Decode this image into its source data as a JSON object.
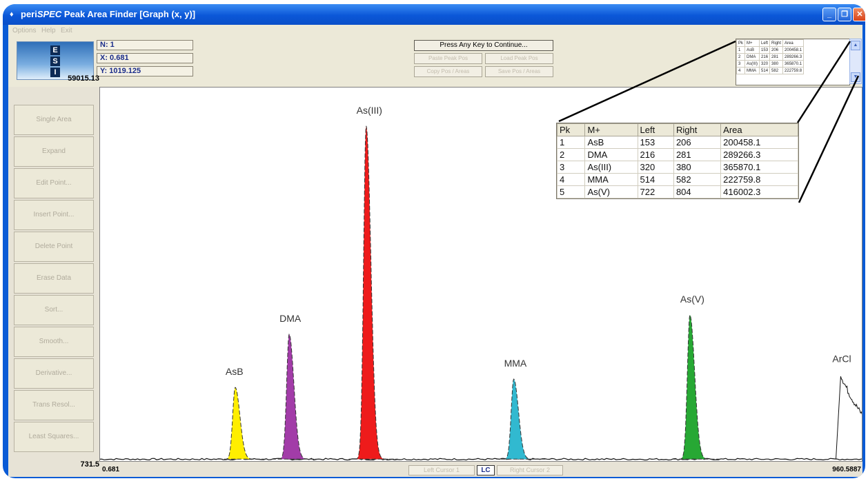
{
  "window": {
    "title_prefix": "peri",
    "title_brand": "SPEC",
    "title_rest": " Peak Area Finder [Graph (x, y)]",
    "controls": {
      "minimize": "_",
      "restore": "❐",
      "close": "✕"
    }
  },
  "menu": [
    "Options",
    "Help",
    "Exit"
  ],
  "logo": {
    "letters": [
      "E",
      "S",
      "I"
    ]
  },
  "readouts": {
    "n": "N: 1",
    "x": "X: 0.681",
    "y": "Y: 1019.125"
  },
  "y_axis": {
    "max_label": "59015.13",
    "min_label": "731.5"
  },
  "x_axis": {
    "min_label": "0.681",
    "max_label": "960.5887"
  },
  "toolbar": {
    "continue_label": "Press Any Key to Continue...",
    "paste_peak_pos": "Paste Peak Pos",
    "load_peak_pos": "Load Peak Pos",
    "copy_pos_areas": "Copy Pos / Areas",
    "save_pos_areas": "Save Pos / Areas"
  },
  "sidebar": [
    "Single Area",
    "Expand",
    "Edit Point...",
    "Insert Point...",
    "Delete Point",
    "Erase Data",
    "Sort...",
    "Smooth...",
    "Derivative...",
    "Trans Resol...",
    "Least Squares..."
  ],
  "cursors": {
    "left": "Left Cursor 1",
    "mode": "LC",
    "right": "Right Cursor 2"
  },
  "peak_table": {
    "headers": [
      "Pk",
      "M+",
      "Left",
      "Right",
      "Area"
    ],
    "rows": [
      [
        "1",
        "AsB",
        "153",
        "206",
        "200458.1"
      ],
      [
        "2",
        "DMA",
        "216",
        "281",
        "289266.3"
      ],
      [
        "3",
        "As(III)",
        "320",
        "380",
        "365870.1"
      ],
      [
        "4",
        "MMA",
        "514",
        "582",
        "222759.8"
      ],
      [
        "5",
        "As(V)",
        "722",
        "804",
        "416002.3"
      ]
    ]
  },
  "mini_table_rows": [
    [
      "Pk",
      "M+",
      "Left",
      "Right",
      "Area"
    ],
    [
      "1",
      "AsB",
      "153",
      "206",
      "200458.1"
    ],
    [
      "2",
      "DMA",
      "216",
      "281",
      "289266.3"
    ],
    [
      "3",
      "As(III)",
      "320",
      "380",
      "365870.1"
    ],
    [
      "4",
      "MMA",
      "514",
      "582",
      "222759.8"
    ]
  ],
  "chart_data": {
    "type": "line",
    "title": "",
    "xlabel": "",
    "ylabel": "",
    "xlim": [
      0.681,
      960.5887
    ],
    "ylim": [
      731.5,
      59015.13
    ],
    "baseline": 1019.125,
    "peaks": [
      {
        "name": "AsB",
        "x": 171,
        "height": 11200,
        "color": "#ffee00"
      },
      {
        "name": "DMA",
        "x": 239,
        "height": 19500,
        "color": "#a23ca8"
      },
      {
        "name": "As(III)",
        "x": 336,
        "height": 52000,
        "color": "#ee1b1b"
      },
      {
        "name": "MMA",
        "x": 522,
        "height": 12500,
        "color": "#31b9d0"
      },
      {
        "name": "As(V)",
        "x": 744,
        "height": 22500,
        "color": "#27a834"
      }
    ],
    "background_feature": {
      "name": "ArCl",
      "start_x": 934,
      "peak_height": 13200,
      "end_x": 1070
    },
    "grid": false,
    "legend": "none"
  }
}
